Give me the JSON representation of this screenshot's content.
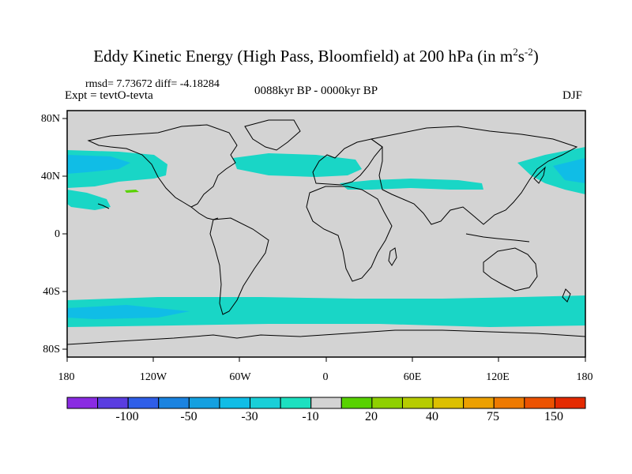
{
  "title": {
    "main": "Eddy Kinetic Energy (High Pass, Bloomfield) at 200 hPa (in m",
    "sup1": "2",
    "s": "s",
    "sup2": "-2",
    "close": ")"
  },
  "stats_text": "rmsd= 7.73672 diff= -4.18284",
  "experiment_text": "Expt = tevtO-tevta",
  "period_text": "0088kyr BP - 0000kyr BP",
  "season_text": "DJF",
  "map": {
    "projection": "cylindrical equidistant",
    "land_color": "#d3d3d3",
    "coastline_color": "#000000",
    "lat_labels": [
      "80N",
      "40N",
      "0",
      "40S",
      "80S"
    ],
    "lon_labels": [
      "180",
      "120W",
      "60W",
      "0",
      "60E",
      "120E",
      "180"
    ],
    "shaded_regions": [
      {
        "region": "North Pacific storm track",
        "lat_range": [
          28,
          52
        ],
        "lon_range": [
          -180,
          -120
        ],
        "class": "-10 to -30"
      },
      {
        "region": "North Pacific east of Japan",
        "lat_range": [
          30,
          52
        ],
        "lon_range": [
          140,
          180
        ],
        "class": "-10 to -30"
      },
      {
        "region": "North Atlantic storm track",
        "lat_range": [
          40,
          52
        ],
        "lon_range": [
          -60,
          5
        ],
        "class": "-10 to -30"
      },
      {
        "region": "Mediterranean band",
        "lat_range": [
          30,
          38
        ],
        "lon_range": [
          30,
          120
        ],
        "class": "-10 to -30"
      },
      {
        "region": "Southern Ocean band",
        "lat_range": [
          -65,
          -45
        ],
        "lon_range": [
          -180,
          180
        ],
        "class": "-10 to -30"
      },
      {
        "region": "small positive patch",
        "lat_range": [
          30,
          32
        ],
        "lon_range": [
          -135,
          -128
        ],
        "class": "10 to 20"
      }
    ]
  },
  "colorbar": {
    "colors": [
      "#8a2be2",
      "#5a3de0",
      "#2f5ee8",
      "#1a83e0",
      "#14a0e0",
      "#10bde6",
      "#19cfd8",
      "#1ce0c0",
      "#d3d3d3",
      "#58d200",
      "#8fd000",
      "#b6cc00",
      "#dcc000",
      "#eca000",
      "#ee7a00",
      "#ec5200",
      "#e42a00"
    ],
    "labels": [
      "-100",
      "-50",
      "-30",
      "-10",
      "20",
      "40",
      "75",
      "150"
    ]
  }
}
